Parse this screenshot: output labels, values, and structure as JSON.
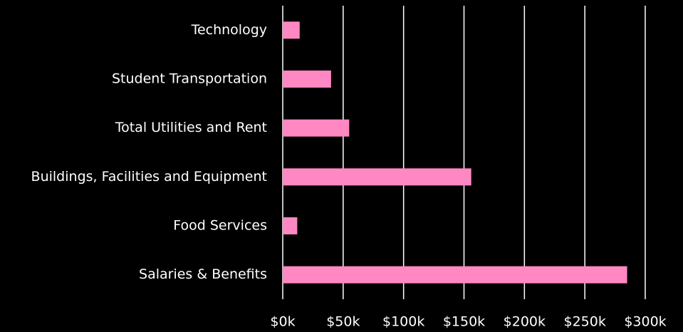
{
  "chart_data": {
    "type": "bar",
    "orientation": "horizontal",
    "categories": [
      "Technology",
      "Student Transportation",
      "Total Utilities and Rent",
      "Buildings, Facilities and Equipment",
      "Food Services",
      "Salaries & Benefits"
    ],
    "values": [
      14000,
      40000,
      55000,
      156000,
      12000,
      285000
    ],
    "color": "#ff88c2",
    "xlim": [
      0,
      300000
    ],
    "xticks": [
      {
        "value": 0,
        "label": "$0k"
      },
      {
        "value": 50000,
        "label": "$50k"
      },
      {
        "value": 100000,
        "label": "$100k"
      },
      {
        "value": 150000,
        "label": "$150k"
      },
      {
        "value": 200000,
        "label": "$200k"
      },
      {
        "value": 250000,
        "label": "$250k"
      },
      {
        "value": 300000,
        "label": "$300k"
      }
    ],
    "grid": true
  }
}
